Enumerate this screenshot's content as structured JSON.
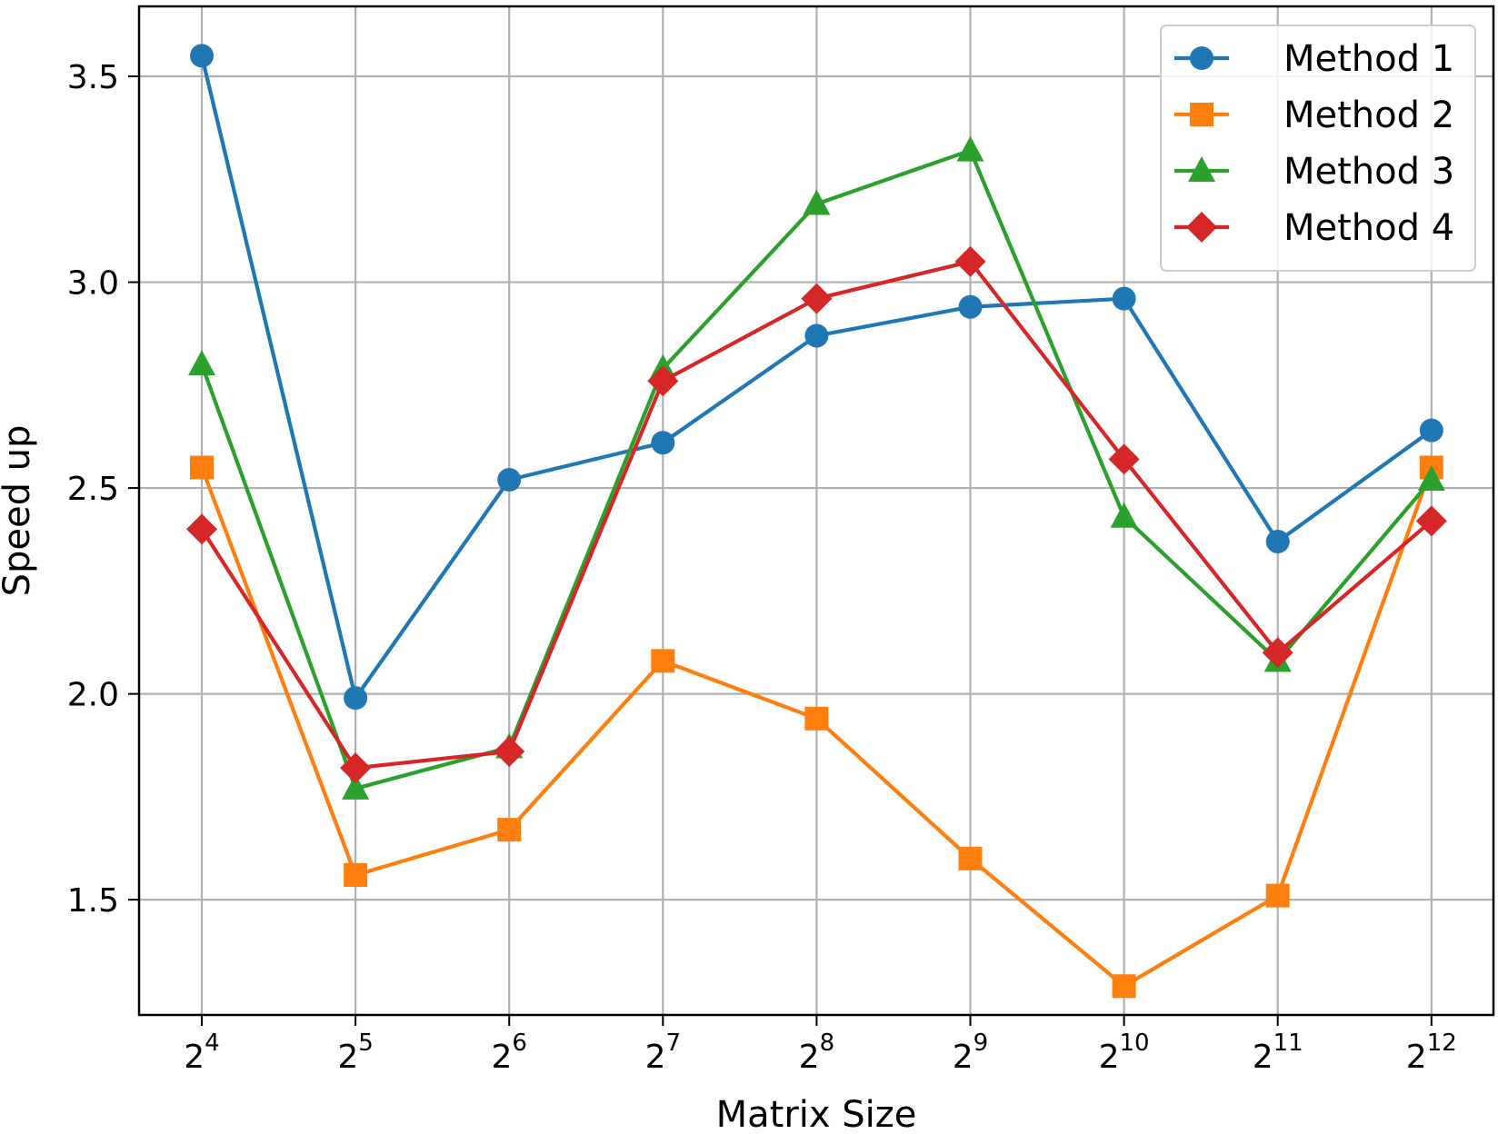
{
  "chart_data": {
    "type": "line",
    "title": "",
    "xlabel": "Matrix Size",
    "ylabel": "Speed up",
    "categories": [
      {
        "base": "2",
        "exp": "4"
      },
      {
        "base": "2",
        "exp": "5"
      },
      {
        "base": "2",
        "exp": "6"
      },
      {
        "base": "2",
        "exp": "7"
      },
      {
        "base": "2",
        "exp": "8"
      },
      {
        "base": "2",
        "exp": "9"
      },
      {
        "base": "2",
        "exp": "10"
      },
      {
        "base": "2",
        "exp": "11"
      },
      {
        "base": "2",
        "exp": "12"
      }
    ],
    "y_ticks": [
      "1.5",
      "2.0",
      "2.5",
      "3.0",
      "3.5"
    ],
    "ylim": [
      1.22,
      3.67
    ],
    "grid": true,
    "legend_position": "top-right",
    "series": [
      {
        "name": "Method 1",
        "color": "#1f77b4",
        "marker": "circle",
        "values": [
          3.55,
          1.99,
          2.52,
          2.61,
          2.87,
          2.94,
          2.96,
          2.37,
          2.64
        ]
      },
      {
        "name": "Method 2",
        "color": "#ff7f0e",
        "marker": "square",
        "values": [
          2.55,
          1.56,
          1.67,
          2.08,
          1.94,
          1.6,
          1.29,
          1.51,
          2.55
        ]
      },
      {
        "name": "Method 3",
        "color": "#2ca02c",
        "marker": "triangle",
        "values": [
          2.8,
          1.77,
          1.87,
          2.79,
          3.19,
          3.32,
          2.43,
          2.08,
          2.52
        ]
      },
      {
        "name": "Method 4",
        "color": "#d62728",
        "marker": "diamond",
        "values": [
          2.4,
          1.82,
          1.86,
          2.76,
          2.96,
          3.05,
          2.57,
          2.1,
          2.42
        ]
      }
    ]
  }
}
